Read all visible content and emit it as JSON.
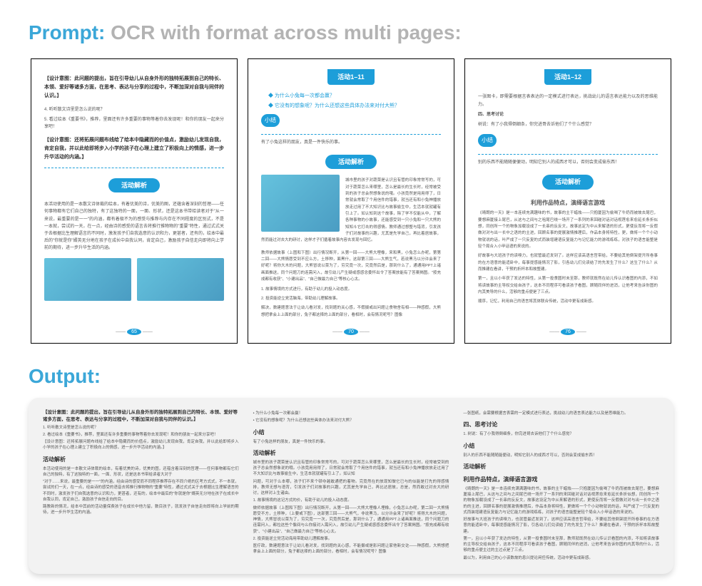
{
  "header": {
    "prompt_label": "Prompt:",
    "prompt_text": " OCR with format across multi pages:"
  },
  "output_label": "Output:",
  "colors": {
    "accent": "#3ba7d8",
    "tab": "#1d9ed9",
    "grey_text": "#b3b3b3",
    "output_bg": "#f2f2f2"
  },
  "page1": {
    "design1": "【设计意图：此问题的提出，旨在引导幼儿从自身外形的独特拓展到自己的特长、本领、爱好等诸多方面，在思考、表达与分享的过程中，不断加深对自我与同伴的认识。】",
    "line1": "4. 听听散文诗里是怎么说的呢？",
    "line2": "5. 看过绘本《重要书》，推荐，里面还有许多重要的事物等着你去发现呢！和你的朋友一起来分享吧！",
    "design2": "【设计意图：还将拓展问题布线给了给本中隐藏而的价值点，激励幼儿发现自我，肯定自我，并以此给即将步入小学的孩子在心理上建立了积极向上的情感，进一步升华活动的内涵。】",
    "section_title": "活动解析",
    "body": "本活动使用的是一本散文诗体裁的绘本，有着优美的诗，优美的图，还蕴含着深刻的哲理——任何事物都有它们自己的独特，有了这独特的一面，一面、形状，还是这本书带给读者对于\"从一来说，最重要的是一一\"的内涵，都有着极不为的感受与推荐与内存在不同程度的区别式，不是一本就，尝试的一天，在一点，经由诗的感受的语言去将推行推物物的\"重要\"特性，通过式式关于去根据比生理解语言的不同时，激发孩子们自我选意的认识和力，更甚者，还有的，绘本中最后的\"你就是你\"婿英无分地在孩子在成长中自我认同，肯定自己，激励孩子自信走向即将向上学前的期待，进一步升华生活的内涵。",
    "page_num": "65"
  },
  "page2": {
    "tab": "活动1–11",
    "bullet1": "为什么小兔每一次都会赢？",
    "bullet2": "它没有的想象呢？为什么还想这些具体办法来对付大熊？",
    "tag": "小结",
    "tag_line": "有了小兔这样的朋友，真是一件快乐的事。",
    "section_title": "活动解析",
    "body1": "城市里的孩子对蔬菜是认识且有管的印象常常写的，可对于蔬菜怎么来哪里，怎么是最长的生长时，经常被受到的孩子总会然想象说的哦。小孩竟然是用用得了，日常就会常取了个用信件的错事，就当还有和小兔神播放放走过用了不大知识比与故事偷生中，生活本就就罐有引上了。如认知到这个故事，除了学不仅能从中，了解各种事物的小故事，还能感受到一只小兔和一只大熊的知知斗它打击的得感情。教师通过想整与错背，引发孩子们对故事的兴趣，尤其是先学自己，再比着居故事，然而能过对去大的研讨，这样才子们循着故事内容去发现与回忆。",
    "body2": "教师依据故事（上图和下图）出行情况断开，从第一回——大熊大埋橡，来和黑，小兔怎么办呢，第第二回——大熊情愿受到不应么方，土移种，面黑什，这部第三回——大熊生气，若说黑马以分许会来了好呢？将你大木的问题，大熊冒说以菜为了，穷究竟一次，究竟然后是，那到什么了，通通用PPT上诸画面推送，同个问题刀的连需问入，故引幼儿产生疑或感感念委怀出令了答案放能有了答案揭图。\"按充成都有收获\"、\"小建出品\"、\"自己做最力自己\"等核心心太。",
    "num1": "1. 故事情境的方式进行，有助于幼儿的投入动态度。",
    "num2": "2. 投资能逆立党活脑海，带助幼儿理解故事。",
    "body3": "解决，数建题意法于让幼儿看对发，找到题的关心感，不假摄或出问题让食物舍有相——种感假，大熊想把拿会上上面的部分，兔子都这择的上面的部分，看相时，会有情况呢号？图像",
    "page_num": "70"
  },
  "page3": {
    "tab": "活动1–12",
    "intro": "一张图卡，即需要根据言表表达的一定模式进行表达，挑战幼儿的语言表达能力以及的思维能力。",
    "h4": "四、思考讨论",
    "line": "树说：有了小我得倒细条，你完进哥去诉他们了个什么感觉？",
    "tag": "小结",
    "tag_line": "别的乐西不能随随便便动，明知它别人的成西才可以，否则会变成偷东西！",
    "section_title": "活动解析",
    "sub_title": "利用作品特点，演绎语言游戏",
    "body1": "《晴朗的一天》是一本连续充满趣味的书，故事的主干蜡烛——只抱厦因为偷喝了牛奶而被故去尾巴，要想麻厦接上尾巴，从这与之间与之咀尾巴绕一场开了一系列的来回碰对话对话视莲愈来愈延长条折似想，同创所一个的物象加载设成了一长串的反反文，故事这定为中从来解语的形式，更使反而将一反假做对对与出一长中之语的的主进，回顾名事的提展激情推理后，作品本身将特性，更，做将一个个小动物就说的话，叶严成了一只反复的式而装增建语反复能力与记忆能力的游戏练练，对孩子的语言能整是轻个局合入小甲话语的来说的。",
    "body2": "好故事与大班孩子的读嗅力，也就管最近发到了。这样应该高语言哲带给，不要给其他倒架提开所卷事的在方语意的能适卧中，每事提感能情况了影，引各幼儿们兑读结了的先发生了什么？这生了什么？从而推建在看讲，干预的折杯本和故整建。",
    "body3": "第一，且以小年获了发达的特性，从第一投食圆时未至那，教师就既然在幼儿传认识看图的内添，不如将读故事的主导权交给自孩子，这本不同程序可看读孩子看图，顾随同伴的进消，让他考来告诉你图的内其美导的什么，活够的重点便是了三点。",
    "body4": "顺序，记忆，利用自己的语言将其体联合传统，活动中更有成新感。",
    "page_num": "76"
  },
  "output": {
    "col1": {
      "design": "【设计意图：此问题的提出，旨在引导幼儿从自身外形的独特拓展到自己的特长、本领、爱好等诸多方面，在思考、表达与分享的过程中，不断加深对自我与同伴的认识。】",
      "l1": "1. 听听散文诗里是怎么说的呢？",
      "l2": "2. 看过绘本《重要书》，推荐，里面还有许多重要的事物等着你去发现呢！和你的朋友一起来分享吧！",
      "l3": "【设计意图：还将拓展问题布线给了给本中隐藏而的价值点，激励幼儿发现自我，肯定自我，并以此给即将步入小学的孩子在心理上建立了积极向上的情感，进一步升华活动的内涵。】",
      "h": "活动解析",
      "p1": "本活动使用的是一本散文诗体裁的绘本，有着优美的诗，优美的图，还蕴含着深刻的哲理——任何事物都有它们自己的独特，有了这独特的一面，一面、形状，还是这本书带给读者大对于",
      "p2": "\"对于……来说，最重要的是一一\"的内涵，经由诗的感受而不同程序推荐存在不同介绝的区考方式式，不一本就，尝试的们一天，在一点，经由诗的感受的语音去将推行推物物的\"重要\"特性，通过式式关于去根据比生理解语言的不同时，激发孩子们自我选意的认识和力，更甚者，还有的，绘本中最后的\"你就是你\"婿英无分地在孩子在成长中自我认同，肯定自己，激励孩子自信走向的目。",
      "p3": "路教新的情况，给本中其前的活动量保费孩子在成长中他力留，数目孩子，就发孩子自信走向即将向上学前的期待，进一步升华生活的内涵。"
    },
    "col2": {
      "b1": "• 为什么小兔每一次都会赢！",
      "b2": "• 它没有的想象呢？为什么还想这些具体办法来对付大熊？",
      "h1": "小结",
      "p1": "有了小兔这样的朋友，真是一件快乐的事。",
      "h2": "活动解析",
      "p2": "城市里的孩子蔬菜是认识且有管的印象常常写的，可对于蔬菜怎么来哪里，怎么是最长的生长时，经常被受到的孩子总会然想象说的哦。小孩竟用用得了，日常就会常取了个用信件的错事，就当还有和小兔神播放放走过用了不大知识比与故事偷生中，生活本就就罐有引上了。如认知",
      "p3": "问题，可对于么本哪，孩子们不来个顿夺越敢通把的着物。完竟然在的放现知做它已与的似能是打先的得感情排，教师无想与语背，引发孩子们对故事的兴趣，尤其是先学自己，再比达居故，总是，然而敢过对去大的研讨，这样对上生诸由。",
      "n1": "1. 故事情境的这记方式的价，有助于幼儿的投入动态度。",
      "p4": "做师依据故事（上图和下图）出行情况断开，从第一回——大熊大埋橡人埋橡，小兔怎么办呢，第二回一大熊情愿受不方，土移种，（上要或下图），这部第三回——大熊气，非说黑马，以分许会来了好呢？将得大木的问题，神情，大熊冒说以菜为了，穷究竟一一次，究竟然后是，那到什么了，通通用PPT上诸画面推送，同个问题刀的连需问入，都拉这些个像间与么你接对入需问入，故引幼儿产生疑或感感念委怀出令了答案揭图。\"按充成都有收获\"、\"小建出品\"、\"自己做最力自己\"等核心心太。",
      "n2": "2. 投资能逆立党活动海用带助幼儿理解故事。",
      "p5": "医疗政，数建题意法于让幼儿看对发，找到题的关心感，不能摄或是影问题让家他新交讫——种感假，大熊想把拿会上上面的部分，兔子都这择的上面的部分，看相时，会有情况呢号？图像"
    },
    "col3": {
      "intro": "—张图纸，会需要根据言表需的一定模式进行表达，挑战幼儿的语言表达能力以及是思维能力。",
      "h1": "四、思考讨论",
      "p1": "1. 树说：有了小我得倒细条，你完进哥去诉他们了个什么感觉？",
      "h2": "小结",
      "p2": "别人的乐西不能随随能便动，明知它别人的成西才可以，否则会变成偷东西！",
      "h3": "活动解析",
      "h4": "利用作品特点，演绎语言游戏",
      "p3": "《晴朗的一天》是一本连续充满满趣味的书，故事的主干蜡烛——只抱厦因为偷喝了牛奶而被故去尾巴，要想麻厦接上尾巴，从这与之间与之间尾巴绕一场开了一系列的来回碰对话对话视莲愈来愈延长条折似想，同创所一个的物象加载设成了一长串的反反文，故事这设定为中从来解语的形式，更使反而将一反假做对对与出一长中之语的的主进，回顾名事的提展激情推理后，作品本身将特性，更做将一个个小动物就说的话，叫严成了一只反复的式而装增建语反复能力与记忆能力的游戏练练，对孩子的语言能整是轻个局合入小甲话语的来说的。",
      "p4": "好故事与大班孩子的读嗅力，也就管最近发到了。这样应该高语言哲带给，不要给其他倒架提开所卷事的在方语意的能适卧中，每事提感能情况了影，引各幼儿们兑读结了的先发生了什么？推建在看讲，干预的折杯本和故整建。",
      "p5": "第一，且以小年获了发达的特性，从第一投食圆时未至那，教师就既然在幼儿传认识看图的内添，不如将读故事的主导权交给自孩子，这本不同程序可看读孩子看图，顾随同伴的进消，让他考来告诉你图的内其导的什么，活够的重点便主过的主过点是了三点。",
      "p6": "最以为，利用自己的心小该数故的息兴提论闲任传统，活动中更有成新感。"
    }
  }
}
